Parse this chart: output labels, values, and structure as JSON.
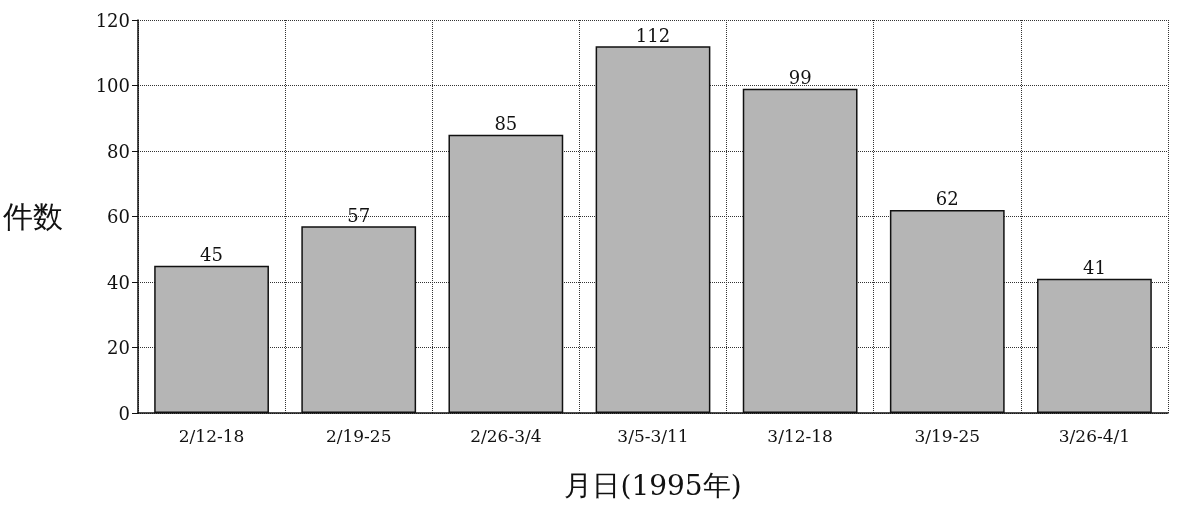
{
  "chart_data": {
    "type": "bar",
    "xlabel": "月日(1995年)",
    "ylabel": "件数",
    "categories": [
      "2/12-18",
      "2/19-25",
      "2/26-3/4",
      "3/5-3/11",
      "3/12-18",
      "3/19-25",
      "3/26-4/1"
    ],
    "values": [
      45,
      57,
      85,
      112,
      99,
      62,
      41
    ],
    "color": "#b5b5b5",
    "ylim": [
      0,
      120
    ],
    "yticks": [
      0,
      20,
      40,
      60,
      80,
      100,
      120
    ],
    "grid": true,
    "data_labels": true
  }
}
